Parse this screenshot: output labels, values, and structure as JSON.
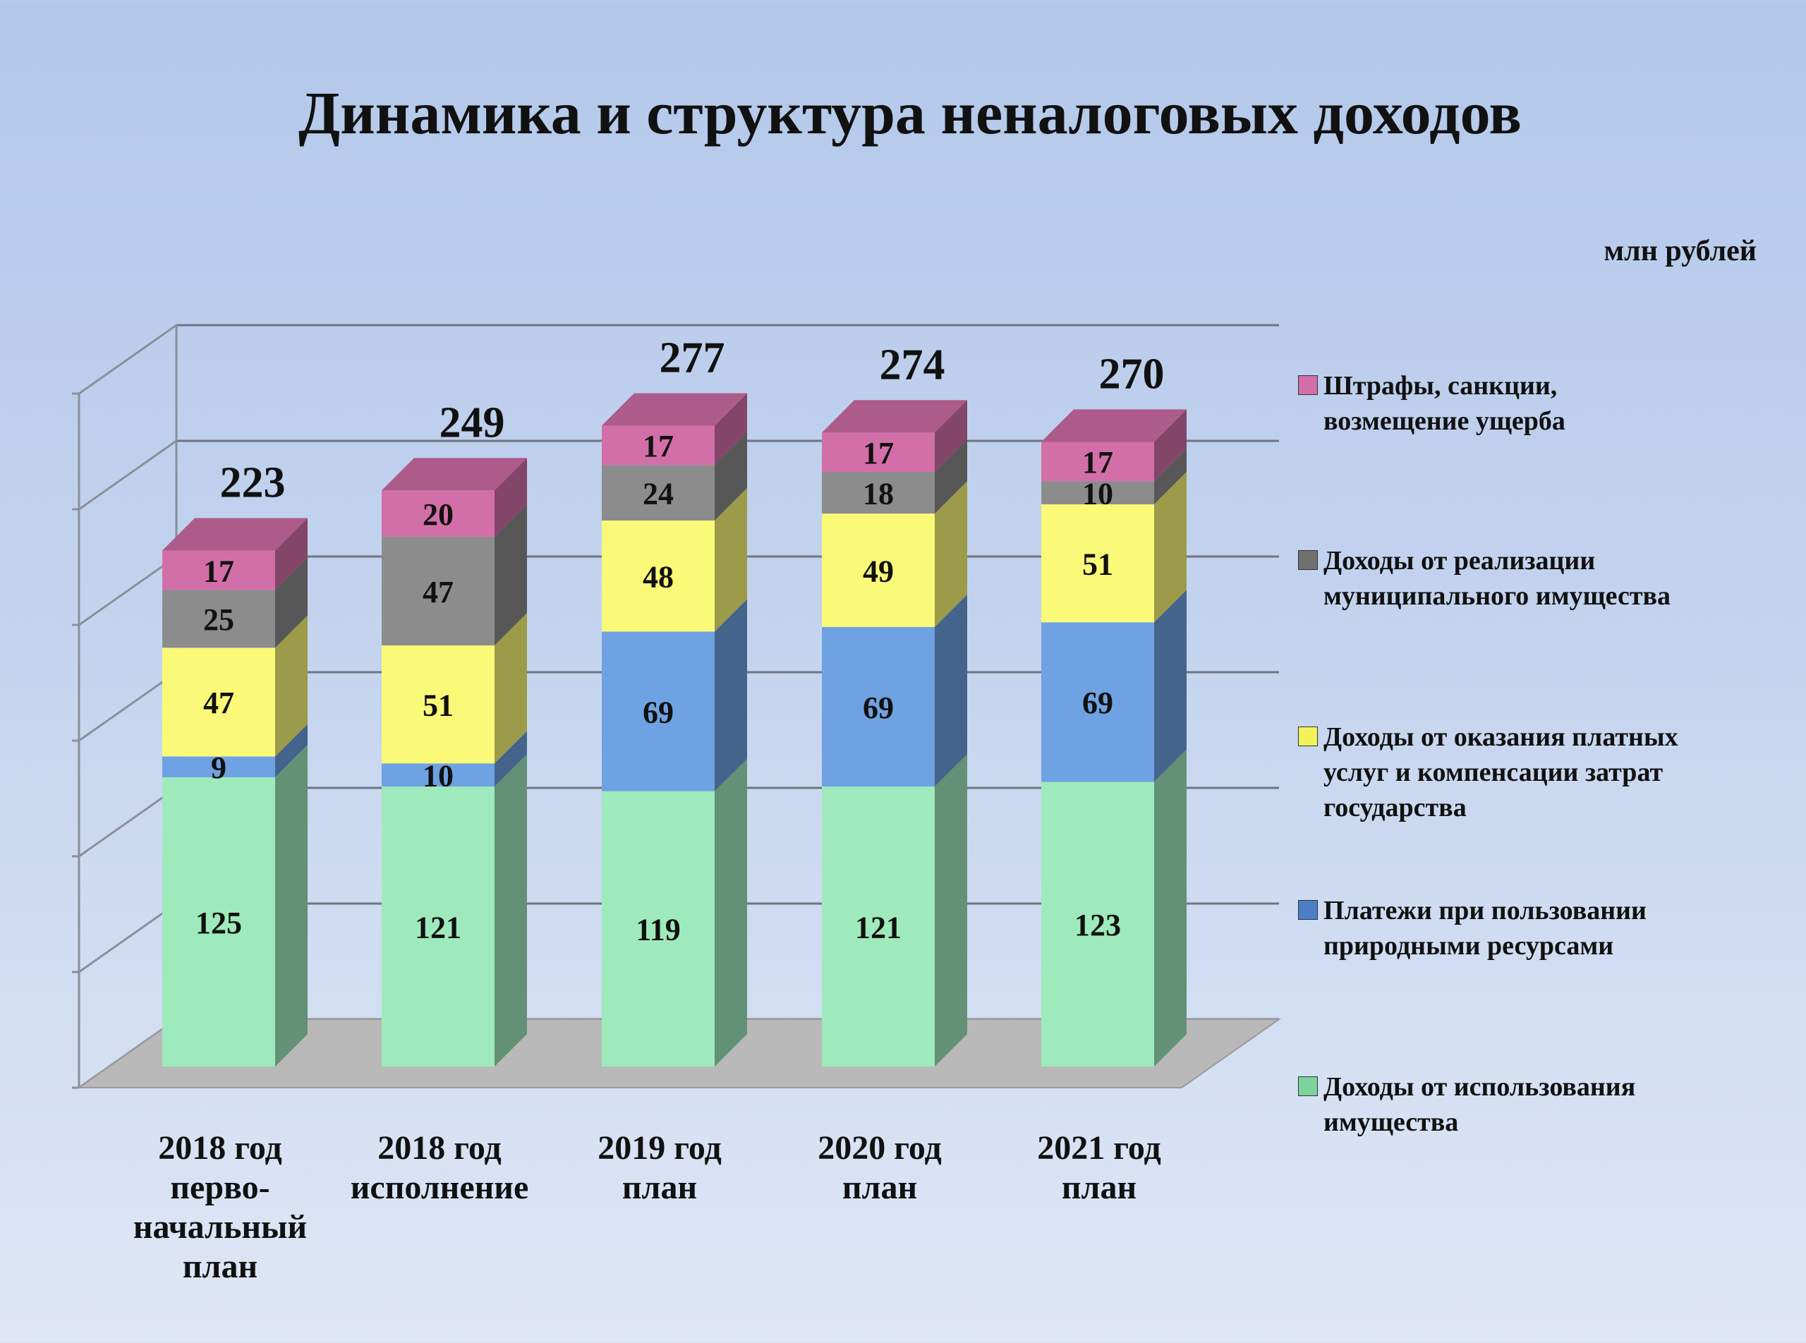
{
  "chart_data": {
    "type": "bar",
    "stacked": true,
    "title": "Динамика  и  структура неналоговых доходов",
    "unit": "млн рублей",
    "categories": [
      "2018 год перво-начальный план",
      "2018 год исполнение",
      "2019 год план",
      "2020 год план",
      "2021 год план"
    ],
    "category_lines": [
      [
        "2018 год",
        "перво-",
        "начальный",
        "план"
      ],
      [
        "2018 год",
        "исполнение"
      ],
      [
        "2019 год",
        "план"
      ],
      [
        "2020 год",
        "план"
      ],
      [
        "2021 год",
        "план"
      ]
    ],
    "totals": [
      223,
      249,
      277,
      274,
      270
    ],
    "series": [
      {
        "name": "Доходы от использования имущества",
        "values": [
          125,
          121,
          119,
          121,
          123
        ],
        "color": "#9eeabc"
      },
      {
        "name": "Платежи при пользовании природными ресурсами",
        "values": [
          9,
          10,
          69,
          69,
          69
        ],
        "color": "#6fa2e2"
      },
      {
        "name": "Доходы от оказания платных услуг и компенсации затрат государства",
        "values": [
          47,
          51,
          48,
          49,
          51
        ],
        "color": "#fafa78"
      },
      {
        "name": "Доходы от реализации муниципального имущества",
        "values": [
          25,
          47,
          24,
          18,
          10
        ],
        "color": "#8c8c8c"
      },
      {
        "name": "Штрафы, санкции, возмещение ущерба",
        "values": [
          17,
          20,
          17,
          17,
          17
        ],
        "color": "#d36fa8"
      }
    ],
    "legend": {
      "position": "right",
      "items": [
        {
          "lines": [
            "Штрафы, санкции,",
            "возмещение ущерба"
          ],
          "color": "#d36fa8"
        },
        {
          "lines": [
            "Доходы от реализации",
            "муниципального имущества"
          ],
          "color": "#707070"
        },
        {
          "lines": [
            "Доходы от оказания платных",
            "услуг и компенсации затрат",
            "государства"
          ],
          "color": "#f2f25a"
        },
        {
          "lines": [
            "Платежи при пользовании",
            "природными ресурсами"
          ],
          "color": "#4c7fc6"
        },
        {
          "lines": [
            "Доходы от использования",
            "имущества"
          ],
          "color": "#7ad49c"
        }
      ]
    },
    "ylim": [
      0,
      300
    ],
    "grid": true
  }
}
